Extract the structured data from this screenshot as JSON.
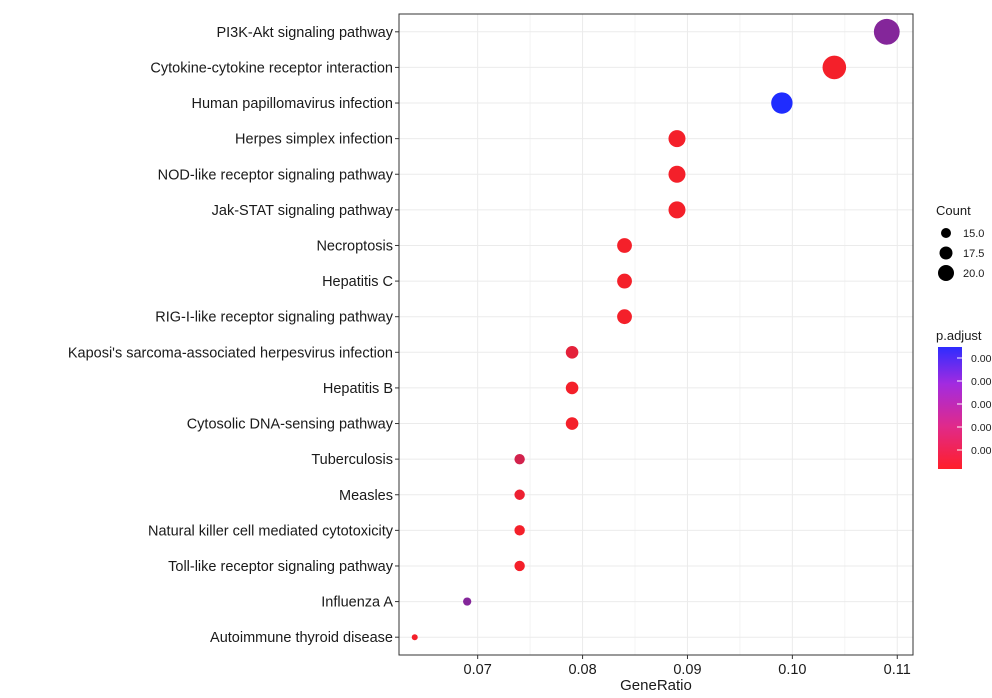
{
  "chart_data": {
    "type": "scatter",
    "title": "",
    "xlabel": "GeneRatio",
    "ylabel": "",
    "xlim": [
      0.0625,
      0.1115
    ],
    "grid": true,
    "x_ticks": [
      0.07,
      0.08,
      0.09,
      0.1,
      0.11
    ],
    "x_tick_labels": [
      "0.07",
      "0.08",
      "0.09",
      "0.10",
      "0.11"
    ],
    "categories": [
      "PI3K-Akt signaling pathway",
      "Cytokine-cytokine receptor interaction",
      "Human papillomavirus infection",
      "Herpes simplex infection",
      "NOD-like receptor signaling pathway",
      "Jak-STAT signaling pathway",
      "Necroptosis",
      "Hepatitis C",
      "RIG-I-like receptor signaling pathway",
      "Kaposi's sarcoma-associated herpesvirus infection",
      "Hepatitis B",
      "Cytosolic DNA-sensing pathway",
      "Tuberculosis",
      "Measles",
      "Natural killer cell mediated cytotoxicity",
      "Toll-like receptor signaling pathway",
      "Influenza A",
      "Autoimmune thyroid disease"
    ],
    "gene_ratio": [
      0.109,
      0.104,
      0.099,
      0.089,
      0.089,
      0.089,
      0.084,
      0.084,
      0.084,
      0.079,
      0.079,
      0.079,
      0.074,
      0.074,
      0.074,
      0.074,
      0.069,
      0.064
    ],
    "count": [
      22,
      21,
      20,
      18,
      18,
      18,
      17,
      17,
      17,
      16,
      16,
      16,
      15,
      15,
      15,
      15,
      14,
      13
    ],
    "padjust_level": [
      0.55,
      0.05,
      1.0,
      0.05,
      0.05,
      0.05,
      0.05,
      0.05,
      0.05,
      0.12,
      0.05,
      0.05,
      0.2,
      0.08,
      0.05,
      0.05,
      0.55,
      0.05
    ],
    "legend_count": {
      "title": "Count",
      "labels": [
        "15.0",
        "17.5",
        "20.0"
      ],
      "values": [
        15.0,
        17.5,
        20.0
      ]
    },
    "legend_padjust": {
      "title": "p.adjust",
      "labels": [
        "0.00",
        "0.00",
        "0.00",
        "0.00",
        "0.00"
      ],
      "colors": [
        "#3b2cf0",
        "#9b2bd0",
        "#cc2a9b",
        "#e82a6a",
        "#ff1f2a"
      ]
    },
    "legend_placement": "right",
    "colors": {
      "low_padjust": "#ff1f1f",
      "high_padjust": "#1f2cff",
      "grid": "#ebebeb",
      "panel_border": "#333333"
    }
  }
}
